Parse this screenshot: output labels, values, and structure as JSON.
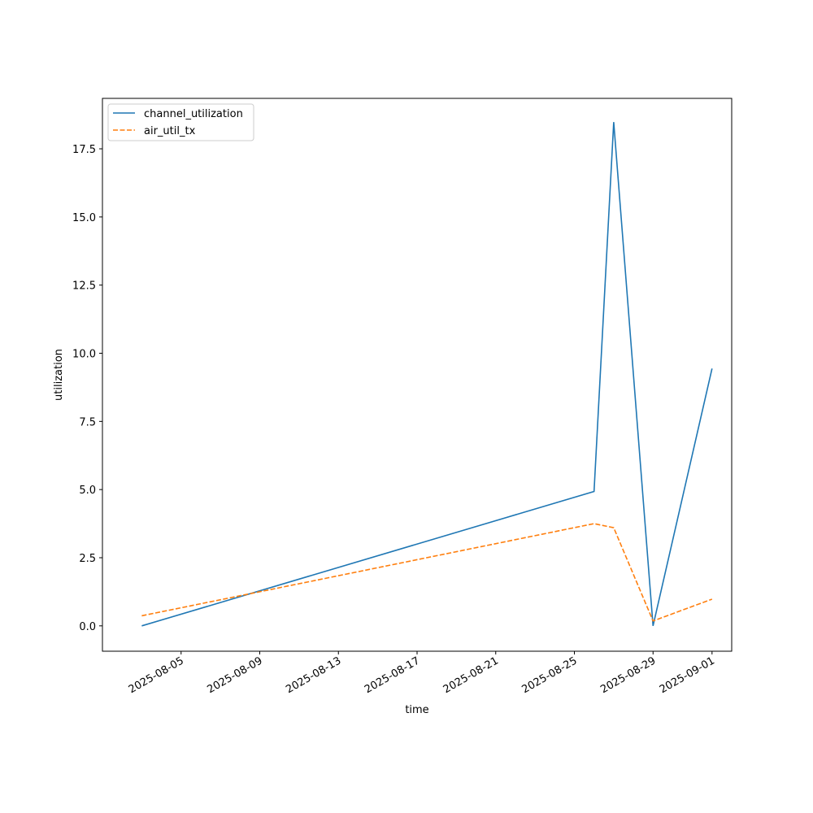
{
  "chart_data": {
    "type": "line",
    "x_label": "time",
    "y_label": "utilization",
    "x": [
      "2025-08-03",
      "2025-08-26",
      "2025-08-27",
      "2025-08-29",
      "2025-09-01"
    ],
    "series": [
      {
        "name": "channel_utilization",
        "color": "#1f77b4",
        "dash": "solid",
        "values": [
          0,
          4.93,
          18.48,
          0,
          9.44
        ]
      },
      {
        "name": "air_util_tx",
        "color": "#ff7f0e",
        "dash": "dashed",
        "values": [
          0.37,
          3.75,
          3.6,
          0.18,
          0.98
        ]
      }
    ],
    "xlim": [
      "2025-08-01",
      "2025-09-02"
    ],
    "xticks": [
      "2025-08-05",
      "2025-08-09",
      "2025-08-13",
      "2025-08-17",
      "2025-08-21",
      "2025-08-25",
      "2025-08-29",
      "2025-09-01"
    ],
    "ylim": [
      -0.93,
      19.35
    ],
    "yticks": [
      {
        "value": 0,
        "label": "0.0"
      },
      2.5,
      {
        "value": 5,
        "label": "5.0"
      },
      7.5,
      {
        "value": 10,
        "label": "10.0"
      },
      12.5,
      {
        "value": 15,
        "label": "15.0"
      },
      17.5
    ],
    "grid": false,
    "legend": "upper-left"
  }
}
